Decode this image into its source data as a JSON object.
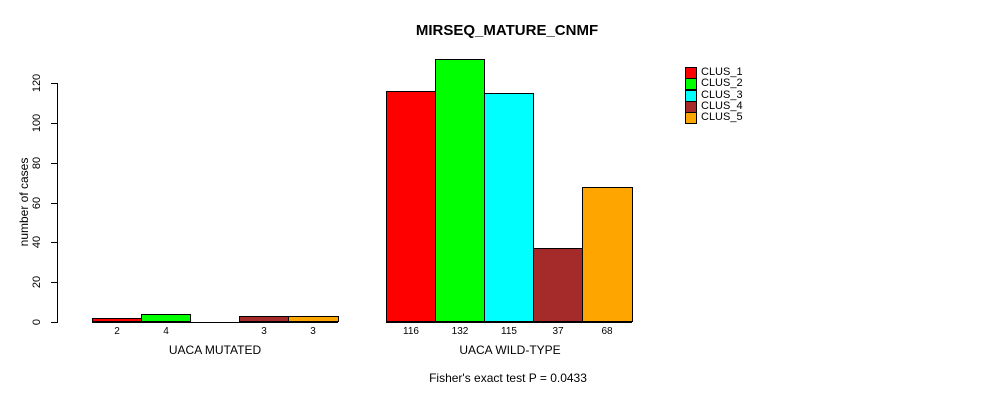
{
  "chart_data": {
    "type": "bar",
    "title": "MIRSEQ_MATURE_CNMF",
    "ylabel": "number of cases",
    "xlabel": "",
    "categories": [
      "UACA MUTATED",
      "UACA WILD-TYPE"
    ],
    "series": [
      {
        "name": "CLUS_1",
        "color": "#ff0000",
        "values": [
          2,
          116
        ]
      },
      {
        "name": "CLUS_2",
        "color": "#00ff00",
        "values": [
          4,
          132
        ]
      },
      {
        "name": "CLUS_3",
        "color": "#00ffff",
        "values": [
          0,
          115
        ]
      },
      {
        "name": "CLUS_4",
        "color": "#a52a2a",
        "values": [
          3,
          37
        ]
      },
      {
        "name": "CLUS_5",
        "color": "#ffa500",
        "values": [
          3,
          68
        ]
      }
    ],
    "yticks": [
      0,
      20,
      40,
      60,
      80,
      100,
      120
    ],
    "ylim": [
      0,
      132
    ],
    "grid": false,
    "legend_position": "top-right",
    "bar_value_labels_shown": true,
    "zero_values_unlabeled": true,
    "footnote": "Fisher's exact test P = 0.0433"
  },
  "style_colors": {
    "background": "#ffffff",
    "axis": "#000000",
    "text": "#000000"
  }
}
